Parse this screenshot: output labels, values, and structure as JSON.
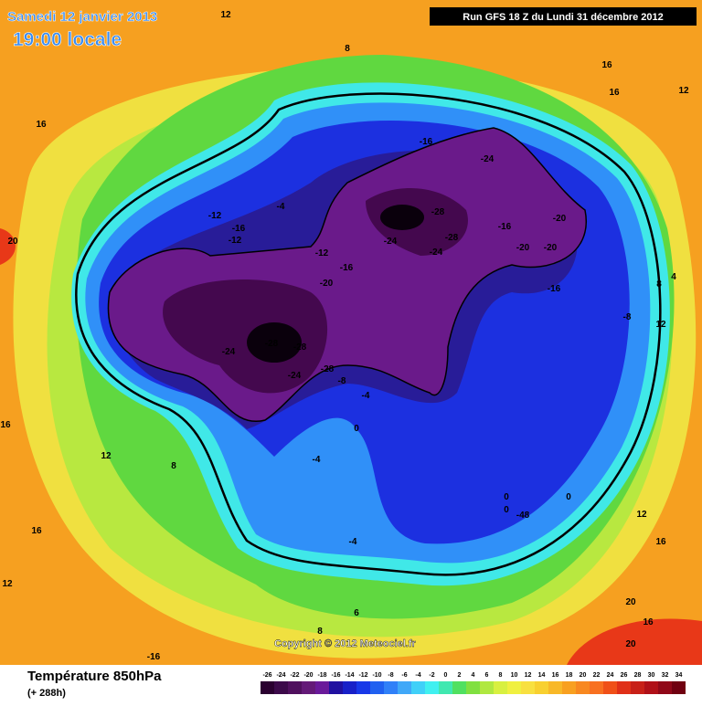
{
  "header": {
    "date": "Samedi 12 janvier 2013",
    "time": "19:00 locale",
    "run": "Run GFS 18 Z du Lundi 31 décembre 2012"
  },
  "map": {
    "copyright": "Copyright © 2012 Meteociel.fr",
    "labels": [
      "12",
      "8",
      "16",
      "20",
      "16",
      "16",
      "12",
      "-16",
      "-24",
      "-28",
      "-28",
      "-24",
      "-24",
      "-16",
      "-20",
      "-20",
      "-20",
      "-16",
      "-8",
      "4",
      "8",
      "12",
      "-12",
      "-16",
      "-12",
      "-4",
      "-12",
      "-16",
      "-20",
      "-24",
      "-28",
      "-28",
      "-24",
      "-28",
      "-8",
      "-4",
      "0",
      "-4",
      "8",
      "12",
      "16",
      "0",
      "0",
      "-48",
      "0",
      "-4",
      "16",
      "12",
      "8",
      "6",
      "20",
      "20",
      "16",
      "-16",
      "12",
      "16"
    ]
  },
  "footer": {
    "title": "Température 850hPa",
    "lead": "(+ 288h)"
  },
  "legend": {
    "ticks": [
      -26,
      -24,
      -22,
      -20,
      -18,
      -16,
      -14,
      -12,
      -10,
      -8,
      -6,
      -4,
      -2,
      0,
      2,
      4,
      6,
      8,
      10,
      12,
      14,
      16,
      18,
      20,
      22,
      24,
      26,
      28,
      30,
      32,
      34
    ],
    "colors": [
      "#2a0030",
      "#3c0a4a",
      "#50105e",
      "#641a78",
      "#6a1a9a",
      "#2010a0",
      "#1820c8",
      "#1838e8",
      "#2060f0",
      "#3080f8",
      "#40a8f8",
      "#40d0f8",
      "#40f0f0",
      "#40e8b0",
      "#50e060",
      "#80e040",
      "#b0e840",
      "#d8f040",
      "#f0f040",
      "#f8e040",
      "#f8d030",
      "#f8b828",
      "#f8a020",
      "#f88820",
      "#f87020",
      "#f05018",
      "#e03018",
      "#c82018",
      "#b01018",
      "#900818",
      "#700010"
    ]
  }
}
